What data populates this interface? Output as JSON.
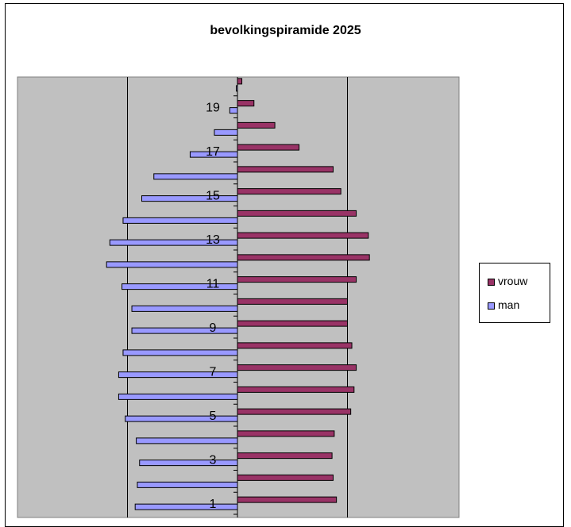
{
  "chart_data": {
    "type": "bar",
    "orientation": "horizontal",
    "title": "bevolkingspiramide 2025",
    "categories": [
      "1",
      "2",
      "3",
      "4",
      "5",
      "6",
      "7",
      "8",
      "9",
      "10",
      "11",
      "12",
      "13",
      "14",
      "15",
      "16",
      "17",
      "18",
      "19",
      "20"
    ],
    "tick_labels": [
      "1",
      "3",
      "5",
      "7",
      "9",
      "11",
      "13",
      "15",
      "17",
      "19"
    ],
    "series": [
      {
        "name": "vrouw",
        "color": "#993366",
        "values": [
          450,
          435,
          430,
          440,
          515,
          530,
          540,
          520,
          500,
          500,
          540,
          600,
          595,
          540,
          470,
          435,
          280,
          170,
          75,
          20
        ]
      },
      {
        "name": "man",
        "color": "#9999ff",
        "values": [
          -465,
          -455,
          -445,
          -460,
          -510,
          -540,
          -540,
          -520,
          -480,
          -480,
          -525,
          -595,
          -580,
          -520,
          -435,
          -380,
          -215,
          -105,
          -35,
          -5
        ]
      }
    ],
    "xlim": [
      -1000,
      1000
    ],
    "grid": "vertical",
    "legend_position": "right"
  }
}
